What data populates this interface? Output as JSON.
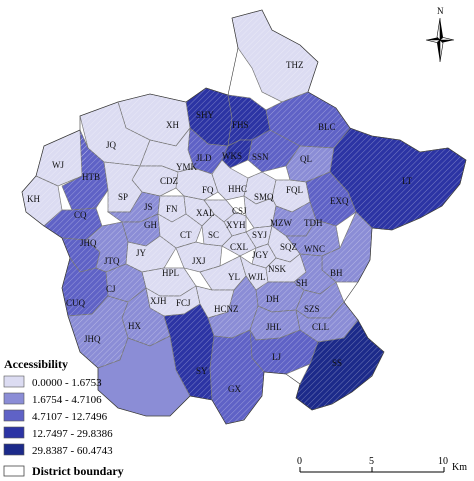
{
  "colors": {
    "class1": "#dcdcf2",
    "class2": "#8b8dd6",
    "class3": "#5f62c6",
    "class4": "#2c34a4",
    "class5": "#1c2a8a",
    "boundary": "#777777",
    "outline": "#333333"
  },
  "legend": {
    "title": "Accessibility",
    "classes": [
      {
        "label": "0.0000 - 1.6753",
        "color": "#dcdcf2"
      },
      {
        "label": "1.6754 - 4.7106",
        "color": "#8b8dd6"
      },
      {
        "label": "4.7107 - 12.7496",
        "color": "#5f62c6"
      },
      {
        "label": "12.7497 - 29.8386",
        "color": "#2c34a4"
      },
      {
        "label": "29.8387 - 60.4743",
        "color": "#1c2a8a"
      }
    ],
    "boundary_label": "District  boundary"
  },
  "north_arrow": {
    "label": "N",
    "icon": "north-arrow-icon"
  },
  "scale_bar": {
    "ticks": [
      "0",
      "5",
      "10"
    ],
    "unit": "Km"
  },
  "districts": [
    {
      "code": "THZ",
      "class": 1
    },
    {
      "code": "SHY",
      "class": 4
    },
    {
      "code": "FHS",
      "class": 4
    },
    {
      "code": "XH",
      "class": 1
    },
    {
      "code": "JQ",
      "class": 1
    },
    {
      "code": "BLC",
      "class": 3
    },
    {
      "code": "SSN",
      "class": 3
    },
    {
      "code": "WKS",
      "class": 4
    },
    {
      "code": "JLD",
      "class": 3
    },
    {
      "code": "YMK",
      "class": 1
    },
    {
      "code": "QL",
      "class": 2
    },
    {
      "code": "LT",
      "class": 4
    },
    {
      "code": "WJ",
      "class": 1
    },
    {
      "code": "HTB",
      "class": 3
    },
    {
      "code": "CDZ",
      "class": 1
    },
    {
      "code": "KH",
      "class": 1
    },
    {
      "code": "SP",
      "class": 1
    },
    {
      "code": "FQ",
      "class": 1
    },
    {
      "code": "HHC",
      "class": 1
    },
    {
      "code": "SMQ",
      "class": 1
    },
    {
      "code": "FQL",
      "class": 1
    },
    {
      "code": "EXQ",
      "class": 3
    },
    {
      "code": "CQ",
      "class": 3
    },
    {
      "code": "JS",
      "class": 2
    },
    {
      "code": "FN",
      "class": 1
    },
    {
      "code": "XAL",
      "class": 1
    },
    {
      "code": "CSJ",
      "class": 1
    },
    {
      "code": "MZW",
      "class": 1
    },
    {
      "code": "TDH",
      "class": 2
    },
    {
      "code": "GH",
      "class": 2
    },
    {
      "code": "XYH",
      "class": 1
    },
    {
      "code": "CT",
      "class": 1
    },
    {
      "code": "SC",
      "class": 1
    },
    {
      "code": "SYJ",
      "class": 1
    },
    {
      "code": "WNC",
      "class": 2
    },
    {
      "code": "JHQ",
      "class": 3
    },
    {
      "code": "CXL",
      "class": 1
    },
    {
      "code": "SQZ",
      "class": 1
    },
    {
      "code": "JGY",
      "class": 1
    },
    {
      "code": "JTQ",
      "class": 2
    },
    {
      "code": "JY",
      "class": 1
    },
    {
      "code": "BH",
      "class": 2
    },
    {
      "code": "HPL",
      "class": 1
    },
    {
      "code": "JXJ",
      "class": 1
    },
    {
      "code": "YL",
      "class": 1
    },
    {
      "code": "WJL",
      "class": 1
    },
    {
      "code": "NSK",
      "class": 1
    },
    {
      "code": "SH",
      "class": 2
    },
    {
      "code": "CJ",
      "class": 2
    },
    {
      "code": "CUQ",
      "class": 3
    },
    {
      "code": "XJH",
      "class": 1
    },
    {
      "code": "FCJ",
      "class": 1
    },
    {
      "code": "DH",
      "class": 2
    },
    {
      "code": "SZS",
      "class": 2
    },
    {
      "code": "HX",
      "class": 2
    },
    {
      "code": "HCNZ",
      "class": 2
    },
    {
      "code": "JHL",
      "class": 2
    },
    {
      "code": "CLL",
      "class": 2
    },
    {
      "code": "JHQ",
      "class": 2
    },
    {
      "code": "SY",
      "class": 4
    },
    {
      "code": "LJ",
      "class": 3
    },
    {
      "code": "SS",
      "class": 5
    },
    {
      "code": "GX",
      "class": 3
    }
  ]
}
